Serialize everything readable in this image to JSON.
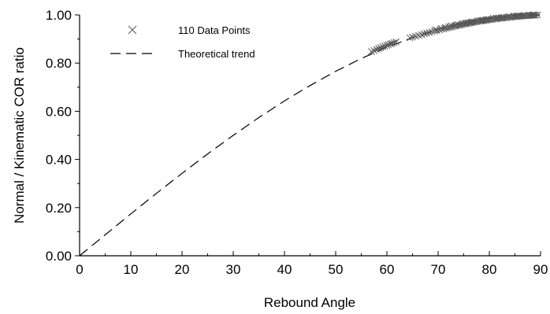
{
  "chart_data": {
    "type": "scatter",
    "title": "",
    "xlabel": "Rebound Angle",
    "ylabel": "Normal / Kinematic COR ratio",
    "xlim": [
      0,
      90
    ],
    "ylim": [
      0,
      1.0
    ],
    "x_ticks": [
      "0",
      "10",
      "20",
      "30",
      "40",
      "50",
      "60",
      "70",
      "80",
      "90"
    ],
    "y_ticks": [
      "0.00",
      "0.20",
      "0.40",
      "0.60",
      "0.80",
      "1.00"
    ],
    "grid": false,
    "legend_position": "top-left",
    "legend": [
      {
        "label": "110 Data Points",
        "marker": "x"
      },
      {
        "label": "Theoretical trend",
        "marker": "dashed-line"
      }
    ],
    "series": [
      {
        "name": "110 Data Points",
        "kind": "scatter",
        "marker": "x",
        "color": "#555555",
        "points": [
          [
            57.0,
            0.848
          ],
          [
            57.5,
            0.852
          ],
          [
            58.0,
            0.857
          ],
          [
            58.4,
            0.861
          ],
          [
            58.8,
            0.864
          ],
          [
            59.2,
            0.868
          ],
          [
            59.6,
            0.871
          ],
          [
            60.0,
            0.874
          ],
          [
            60.3,
            0.877
          ],
          [
            60.7,
            0.88
          ],
          [
            61.0,
            0.882
          ],
          [
            61.4,
            0.885
          ],
          [
            61.8,
            0.888
          ],
          [
            64.5,
            0.905
          ],
          [
            65.0,
            0.908
          ],
          [
            65.6,
            0.912
          ],
          [
            66.2,
            0.915
          ],
          [
            66.8,
            0.918
          ],
          [
            67.3,
            0.922
          ],
          [
            67.8,
            0.924
          ],
          [
            68.3,
            0.927
          ],
          [
            68.8,
            0.93
          ],
          [
            69.3,
            0.933
          ],
          [
            69.8,
            0.936
          ],
          [
            70.3,
            0.938
          ],
          [
            70.8,
            0.941
          ],
          [
            71.2,
            0.943
          ],
          [
            71.6,
            0.945
          ],
          [
            72.0,
            0.947
          ],
          [
            72.4,
            0.949
          ],
          [
            72.8,
            0.951
          ],
          [
            73.2,
            0.953
          ],
          [
            73.6,
            0.955
          ],
          [
            74.0,
            0.957
          ],
          [
            74.3,
            0.958
          ],
          [
            74.6,
            0.96
          ],
          [
            75.0,
            0.962
          ],
          [
            75.3,
            0.963
          ],
          [
            75.6,
            0.964
          ],
          [
            76.0,
            0.966
          ],
          [
            76.3,
            0.967
          ],
          [
            76.6,
            0.969
          ],
          [
            77.0,
            0.97
          ],
          [
            77.3,
            0.971
          ],
          [
            77.6,
            0.972
          ],
          [
            78.0,
            0.974
          ],
          [
            78.3,
            0.975
          ],
          [
            78.6,
            0.976
          ],
          [
            79.0,
            0.977
          ],
          [
            79.3,
            0.978
          ],
          [
            79.6,
            0.979
          ],
          [
            80.0,
            0.98
          ],
          [
            80.3,
            0.981
          ],
          [
            80.6,
            0.982
          ],
          [
            81.0,
            0.983
          ],
          [
            81.3,
            0.984
          ],
          [
            81.6,
            0.985
          ],
          [
            82.0,
            0.986
          ],
          [
            82.3,
            0.987
          ],
          [
            82.6,
            0.987
          ],
          [
            83.0,
            0.988
          ],
          [
            83.3,
            0.989
          ],
          [
            83.6,
            0.99
          ],
          [
            84.0,
            0.991
          ],
          [
            84.3,
            0.991
          ],
          [
            84.6,
            0.992
          ],
          [
            85.0,
            0.993
          ],
          [
            85.3,
            0.993
          ],
          [
            85.6,
            0.994
          ],
          [
            86.0,
            0.995
          ],
          [
            86.3,
            0.995
          ],
          [
            86.6,
            0.996
          ],
          [
            87.0,
            0.996
          ],
          [
            87.3,
            0.997
          ],
          [
            87.6,
            0.997
          ],
          [
            88.0,
            0.998
          ],
          [
            88.3,
            0.998
          ],
          [
            88.6,
            0.999
          ],
          [
            89.0,
            0.999
          ],
          [
            89.4,
            1.0
          ],
          [
            73.8,
            0.96
          ],
          [
            76.8,
            0.972
          ],
          [
            79.8,
            0.982
          ],
          [
            82.8,
            0.99
          ],
          [
            85.8,
            0.997
          ],
          [
            88.8,
            1.0
          ],
          [
            72.6,
            0.955
          ],
          [
            75.8,
            0.968
          ],
          [
            78.8,
            0.978
          ],
          [
            81.8,
            0.988
          ],
          [
            84.8,
            0.995
          ],
          [
            87.8,
            0.999
          ],
          [
            71.4,
            0.948
          ],
          [
            74.8,
            0.964
          ],
          [
            77.8,
            0.976
          ],
          [
            80.8,
            0.986
          ],
          [
            83.8,
            0.993
          ],
          [
            86.8,
            0.998
          ],
          [
            70.6,
            0.944
          ],
          [
            73.4,
            0.957
          ],
          [
            76.4,
            0.97
          ],
          [
            79.4,
            0.981
          ],
          [
            82.4,
            0.989
          ],
          [
            85.4,
            0.996
          ],
          [
            88.4,
            1.0
          ],
          [
            69.5,
            0.938
          ],
          [
            72.2,
            0.952
          ],
          [
            75.4,
            0.966
          ],
          [
            78.4,
            0.977
          ],
          [
            81.4,
            0.987
          ]
        ]
      },
      {
        "name": "Theoretical trend",
        "kind": "line",
        "style": "dashed",
        "color": "#000000",
        "x": [
          0,
          5,
          10,
          15,
          20,
          25,
          30,
          35,
          40,
          45,
          50,
          55,
          60,
          65,
          70,
          75,
          80,
          85,
          90
        ],
        "y": [
          0.0,
          0.087,
          0.174,
          0.259,
          0.342,
          0.423,
          0.5,
          0.574,
          0.643,
          0.707,
          0.766,
          0.819,
          0.866,
          0.906,
          0.94,
          0.966,
          0.985,
          0.996,
          1.0
        ]
      }
    ]
  }
}
